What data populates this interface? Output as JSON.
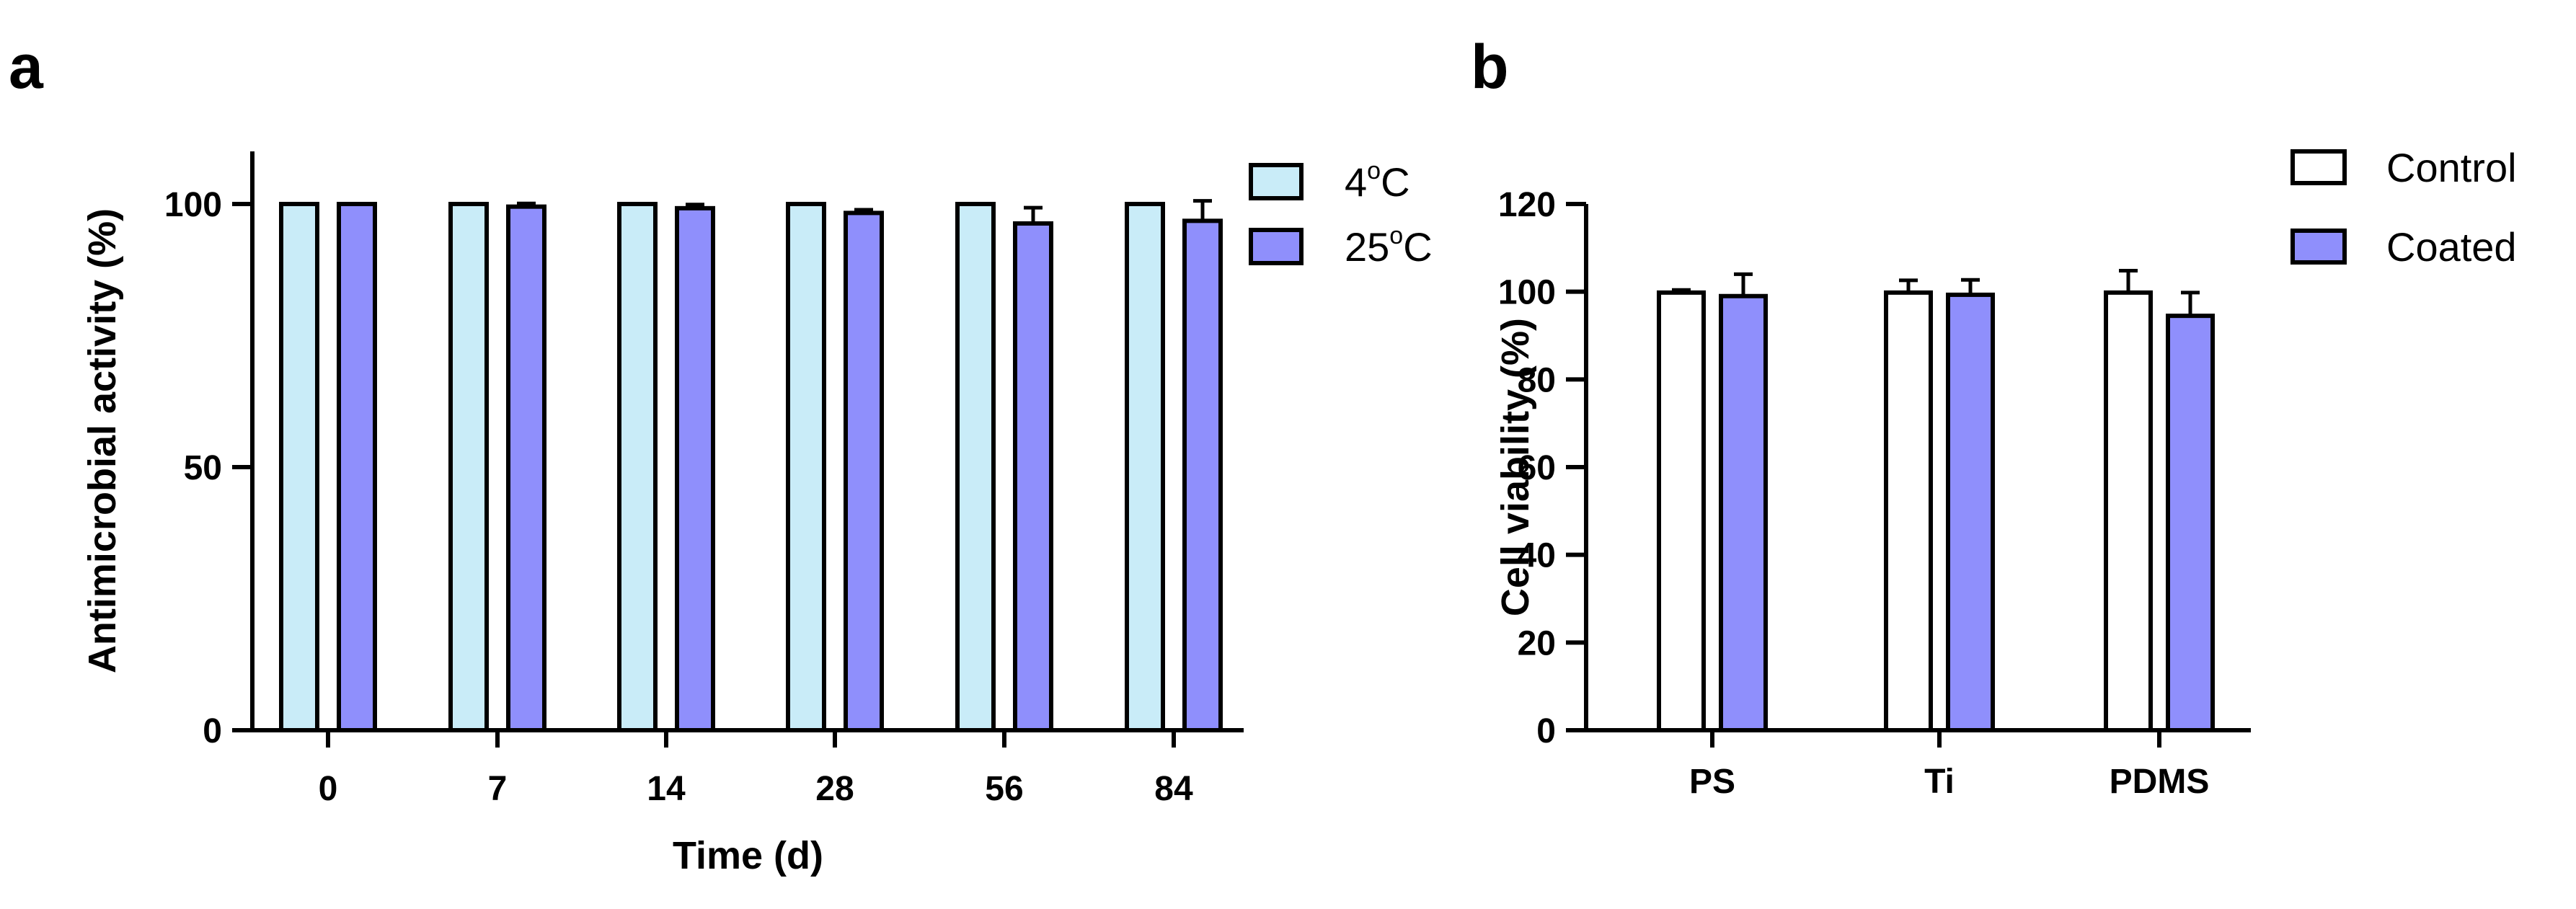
{
  "figure_labels": {
    "a": "a",
    "b": "b"
  },
  "colors": {
    "light_blue": "#c9ecf8",
    "purple": "#8f8ffc",
    "white": "#ffffff",
    "black": "#000000"
  },
  "chart_data": [
    {
      "id": "panel-a",
      "type": "bar",
      "title": "",
      "xlabel": "Time (d)",
      "ylabel": "Antimicrobial activity (%)",
      "ylim": [
        0,
        110
      ],
      "yticks": [
        0,
        50,
        100
      ],
      "categories": [
        "0",
        "7",
        "14",
        "28",
        "56",
        "84"
      ],
      "series": [
        {
          "name": "4",
          "legend_sup": "o",
          "legend_suffix": "C",
          "color": "#c9ecf8",
          "values": [
            100,
            100,
            100,
            100,
            100,
            100
          ],
          "errors": [
            0,
            0,
            0,
            0,
            0,
            0
          ]
        },
        {
          "name": "25",
          "legend_sup": "o",
          "legend_suffix": "C",
          "color": "#8f8ffc",
          "values": [
            100,
            99.5,
            99.2,
            98.3,
            96.3,
            96.8
          ],
          "errors": [
            0,
            0.6,
            0.7,
            0.6,
            3.0,
            3.8
          ]
        }
      ],
      "legend_position": "top-right",
      "grid": false
    },
    {
      "id": "panel-b",
      "type": "bar",
      "title": "",
      "xlabel": "",
      "ylabel": "Cell viability (%)",
      "ylim": [
        0,
        120
      ],
      "yticks": [
        0,
        20,
        40,
        60,
        80,
        100,
        120
      ],
      "categories": [
        "PS",
        "Ti",
        "PDMS"
      ],
      "series": [
        {
          "name": "Control",
          "color": "#ffffff",
          "values": [
            99.8,
            99.8,
            99.8
          ],
          "errors": [
            0.6,
            2.8,
            5.0
          ]
        },
        {
          "name": "Coated",
          "color": "#8f8ffc",
          "values": [
            99.0,
            99.3,
            94.5
          ],
          "errors": [
            5.0,
            3.4,
            5.3
          ]
        }
      ],
      "legend_position": "top-right",
      "grid": false
    }
  ]
}
